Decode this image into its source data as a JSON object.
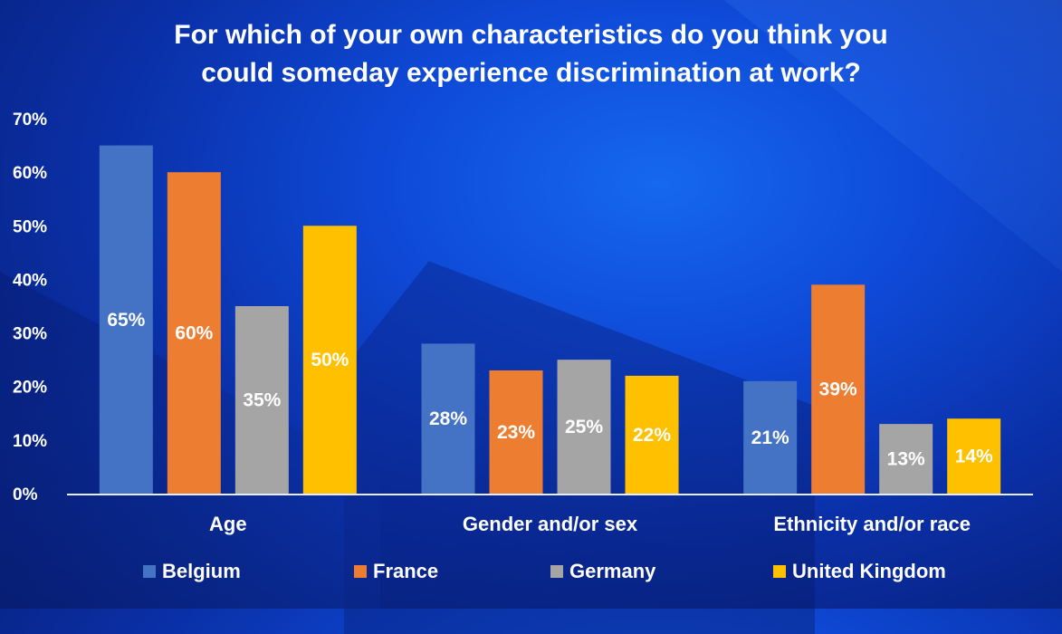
{
  "chart_data": {
    "type": "bar",
    "title_line1": "For which of your own characteristics do you think you",
    "title_line2": "could someday experience discrimination at work?",
    "categories": [
      "Age",
      "Gender and/or sex",
      "Ethnicity and/or race"
    ],
    "series": [
      {
        "name": "Belgium",
        "color": "#4472c4",
        "values": [
          65,
          28,
          21
        ]
      },
      {
        "name": "France",
        "color": "#ed7d31",
        "values": [
          60,
          23,
          39
        ]
      },
      {
        "name": "Germany",
        "color": "#a5a5a5",
        "values": [
          35,
          25,
          13
        ]
      },
      {
        "name": "United Kingdom",
        "color": "#ffc000",
        "values": [
          50,
          22,
          14
        ]
      }
    ],
    "ylim": [
      0,
      70
    ],
    "yticks": [
      0,
      10,
      20,
      30,
      40,
      50,
      60,
      70
    ],
    "tick_suffix": "%",
    "value_suffix": "%",
    "legend_position": "bottom",
    "grid": false
  }
}
